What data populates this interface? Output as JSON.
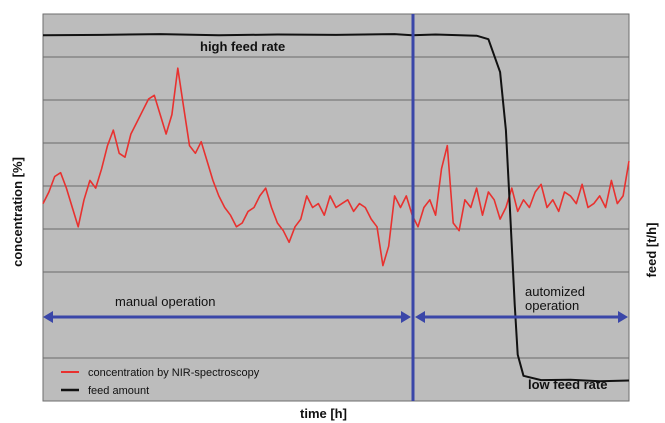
{
  "chart_data": {
    "type": "line",
    "title": "",
    "xlabel": "time [h]",
    "ylabel_left": "concentration [%]",
    "ylabel_right": "feed [t/h]",
    "grid": true,
    "legend_placement": "bottom-left",
    "legend": [
      {
        "label": "concentration by NIR-spectroscopy",
        "color": "#e8312f"
      },
      {
        "label": "feed amount",
        "color": "#111111"
      }
    ],
    "annotations": {
      "high_feed": "high feed rate",
      "low_feed": "low feed rate",
      "manual": "manual operation",
      "auto_line1": "automized",
      "auto_line2": "operation"
    },
    "x_range": [
      0,
      100
    ],
    "y_range": [
      0,
      100
    ],
    "switch_x": 63.2,
    "series": [
      {
        "name": "concentration by NIR-spectroscopy",
        "color": "#e8312f",
        "x": [
          0,
          1,
          2,
          3,
          4,
          5,
          6,
          7,
          8,
          9,
          10,
          11,
          12,
          13,
          14,
          15,
          16,
          17,
          18,
          19,
          20,
          21,
          22,
          23,
          24,
          25,
          26,
          27,
          28,
          29,
          30,
          31,
          32,
          33,
          34,
          35,
          36,
          37,
          38,
          39,
          40,
          41,
          42,
          43,
          44,
          45,
          46,
          47,
          48,
          49,
          50,
          51,
          52,
          53,
          54,
          55,
          56,
          57,
          58,
          59,
          60,
          61,
          62,
          63,
          64,
          65,
          66,
          67,
          68,
          69,
          70,
          71,
          72,
          73,
          74,
          75,
          76,
          77,
          78,
          79,
          80,
          81,
          82,
          83,
          84,
          85,
          86,
          87,
          88,
          89,
          90,
          91,
          92,
          93,
          94,
          95,
          96,
          97,
          98,
          99,
          100
        ],
        "y": [
          51,
          54,
          58,
          59,
          55,
          50,
          45,
          52,
          57,
          55,
          60,
          66,
          70,
          64,
          63,
          69,
          72,
          75,
          78,
          79,
          74,
          69,
          74,
          86,
          76,
          66,
          64,
          67,
          62,
          57,
          53,
          50,
          48,
          45,
          46,
          49,
          50,
          53,
          55,
          50,
          46,
          44,
          41,
          45,
          47,
          53,
          50,
          51,
          48,
          53,
          50,
          51,
          52,
          49,
          51,
          50,
          47,
          45,
          35,
          40,
          53,
          50,
          53,
          48,
          45,
          50,
          52,
          48,
          60,
          66,
          46,
          44,
          52,
          50,
          55,
          48,
          54,
          52,
          47,
          50,
          55,
          49,
          52,
          50,
          54,
          56,
          50,
          52,
          49,
          54,
          53,
          51,
          56,
          50,
          51,
          53,
          50,
          57,
          51,
          53,
          62
        ]
      },
      {
        "name": "feed amount",
        "color": "#111111",
        "x": [
          0,
          10,
          20,
          30,
          40,
          50,
          60,
          63,
          67,
          74,
          76,
          78,
          79,
          79.5,
          80,
          80.5,
          81,
          82,
          85,
          90,
          95,
          100
        ],
        "y": [
          94.5,
          94.6,
          94.8,
          94.5,
          94.7,
          94.6,
          94.8,
          94.5,
          94.7,
          94.4,
          93.5,
          85,
          70,
          55,
          40,
          25,
          12,
          6.5,
          5.4,
          5.5,
          5.1,
          5.3
        ]
      }
    ]
  }
}
